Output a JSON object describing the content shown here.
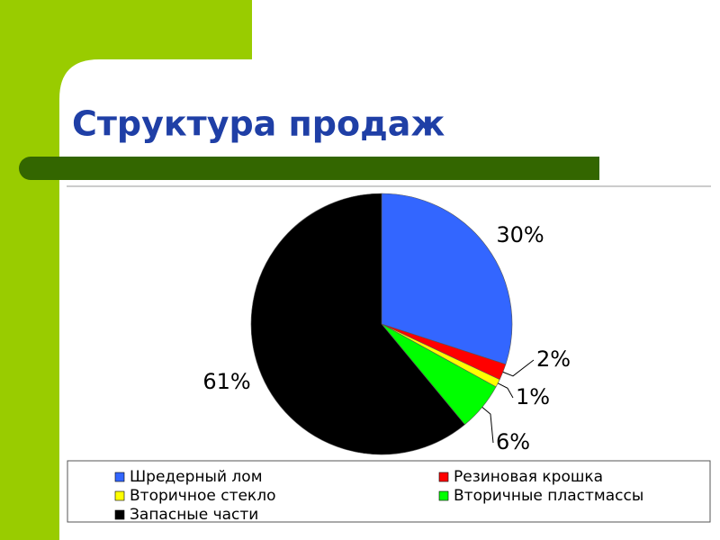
{
  "chart_data": {
    "type": "pie",
    "title": "Структура продаж",
    "categories": [
      "Шредерный лом",
      "Резиновая крошка",
      "Вторичное стекло",
      "Вторичные пластмассы",
      "Запасные части"
    ],
    "values": [
      30,
      2,
      1,
      6,
      61
    ],
    "value_labels": [
      "30%",
      "2%",
      "1%",
      "6%",
      "61%"
    ],
    "colors": [
      "#3366ff",
      "#ff0000",
      "#ffff00",
      "#00ff00",
      "#000000"
    ],
    "legend": "bottom"
  }
}
